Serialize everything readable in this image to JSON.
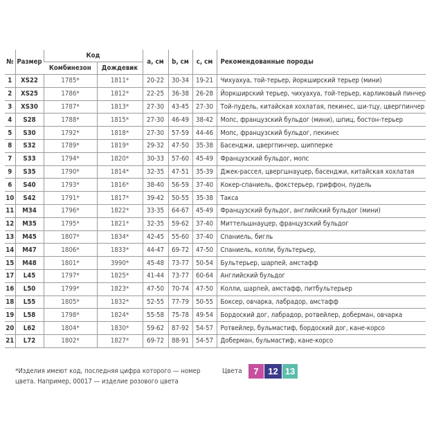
{
  "table": {
    "headers": {
      "num": "№",
      "size": "Размер",
      "code": "Код",
      "code_suit": "Комбинезон",
      "code_raincoat": "Дождевик",
      "a": "a, см",
      "b": "b, см",
      "c": "c, см",
      "breeds": "Рекомендованные породы"
    },
    "rows": [
      {
        "num": "1",
        "size": "XS22",
        "suit": "1785*",
        "rain": "1811*",
        "a": "20-22",
        "b": "30-34",
        "c": "19-21",
        "breeds": "Чихуахуа, той-терьер, йоркширский терьер (мини)"
      },
      {
        "num": "2",
        "size": "XS25",
        "suit": "1786*",
        "rain": "1812*",
        "a": "22-25",
        "b": "36-38",
        "c": "26-28",
        "breeds": "Йоркширский терьер, чихуахуа, той-терьер, карликовый пинчер"
      },
      {
        "num": "3",
        "size": "XS30",
        "suit": "1787*",
        "rain": "1813*",
        "a": "27-30",
        "b": "43-45",
        "c": "27-30",
        "breeds": "Той-пудель, китайская хохлатая, пекинес, ши-тцу, цвергпинчер"
      },
      {
        "num": "4",
        "size": "S28",
        "suit": "1788*",
        "rain": "1815*",
        "a": "27-30",
        "b": "46-49",
        "c": "38-42",
        "breeds": "Мопс, французский бульдог (мини), шпиц, бостон-терьер"
      },
      {
        "num": "5",
        "size": "S30",
        "suit": "1792*",
        "rain": "1818*",
        "a": "27-30",
        "b": "57-59",
        "c": "44-46",
        "breeds": "Мопс, французский бульдог, пекинес"
      },
      {
        "num": "8",
        "size": "S32",
        "suit": "1789*",
        "rain": "1819*",
        "a": "29-32",
        "b": "47-50",
        "c": "35-38",
        "breeds": "Басенджи, цвергпинчер, шипперке"
      },
      {
        "num": "7",
        "size": "S33",
        "suit": "1794*",
        "rain": "1820*",
        "a": "30-33",
        "b": "57-60",
        "c": "45-49",
        "breeds": "Французский бульдог, мопс"
      },
      {
        "num": "9",
        "size": "S35",
        "suit": "1790*",
        "rain": "1814*",
        "a": "32-35",
        "b": "47-51",
        "c": "35-39",
        "breeds": "Джек-рассел, цвергшнауцер, басенджи, китайская хохлатая"
      },
      {
        "num": "6",
        "size": "S40",
        "suit": "1793*",
        "rain": "1816*",
        "a": "38-40",
        "b": "56-59",
        "c": "37-40",
        "breeds": "Кокер-спаниель, фокстерьер, гриффон, пудель"
      },
      {
        "num": "10",
        "size": "S42",
        "suit": "1791*",
        "rain": "1817*",
        "a": "39-42",
        "b": "50-55",
        "c": "35-38",
        "breeds": "Такса"
      },
      {
        "num": "11",
        "size": "M34",
        "suit": "1796*",
        "rain": "1822*",
        "a": "33-35",
        "b": "64-67",
        "c": "45-49",
        "breeds": "Французский бульдог, английский бульдог (мини)"
      },
      {
        "num": "12",
        "size": "M35",
        "suit": "1795*",
        "rain": "1821*",
        "a": "32-35",
        "b": "59-62",
        "c": "37-40",
        "breeds": "Миттельшнауцер, французский бульдог"
      },
      {
        "num": "13",
        "size": "M45",
        "suit": "1807*",
        "rain": "1834*",
        "a": "42-45",
        "b": "55-60",
        "c": "37-40",
        "breeds": "Спаниель, бигль"
      },
      {
        "num": "14",
        "size": "M47",
        "suit": "1806*",
        "rain": "1833*",
        "a": "44-47",
        "b": "69-72",
        "c": "47-50",
        "breeds": "Спаниель, колли,  бультерьер,"
      },
      {
        "num": "15",
        "size": "M48",
        "suit": "1801*",
        "rain": "3990*",
        "a": "45-48",
        "b": "73-77",
        "c": "50-54",
        "breeds": "Бультерьер, шарпей, амстафф"
      },
      {
        "num": "17",
        "size": "L45",
        "suit": "1797*",
        "rain": "1825*",
        "a": "41-44",
        "b": "73-77",
        "c": "60-64",
        "breeds": "Английский бульдог"
      },
      {
        "num": "16",
        "size": "L50",
        "suit": "1799*",
        "rain": "1823*",
        "a": "47-50",
        "b": "70-74",
        "c": "47-50",
        "breeds": "Колли, шарпей, амстафф, питбультерьер"
      },
      {
        "num": "18",
        "size": "L55",
        "suit": "1805*",
        "rain": "1832*",
        "a": "52-55",
        "b": "77-79",
        "c": "50-55",
        "breeds": "Боксер, овчарка, лабрадор, амстафф"
      },
      {
        "num": "19",
        "size": "L58",
        "suit": "1798*",
        "rain": "1824*",
        "a": "55-58",
        "b": "75-78",
        "c": "49-54",
        "breeds": "Бордоский дог, лабрадор, ротвейлер, доберман, овчарка"
      },
      {
        "num": "20",
        "size": "L62",
        "suit": "1804*",
        "rain": "1830*",
        "a": "59-62",
        "b": "87-92",
        "c": "54-57",
        "breeds": "Ротвейлер, бульмастиф, бордоский дог, кане-корсо"
      },
      {
        "num": "21",
        "size": "L72",
        "suit": "1802*",
        "rain": "1827*",
        "a": "69-72",
        "b": "88-91",
        "c": "54-57",
        "breeds": "Доберман, бульмастиф, кане-корсо"
      }
    ]
  },
  "footnote": {
    "line1": "*Изделия имеют код, последняя цифра которого — номер",
    "line2": "цвета. Например, 00017 — изделие розового цвета"
  },
  "colors": {
    "label": "Цвета",
    "swatches": [
      {
        "label": "7",
        "color": "#c6509f"
      },
      {
        "label": "12",
        "color": "#3b3a8b"
      },
      {
        "label": "13",
        "color": "#5cbcab"
      }
    ]
  }
}
